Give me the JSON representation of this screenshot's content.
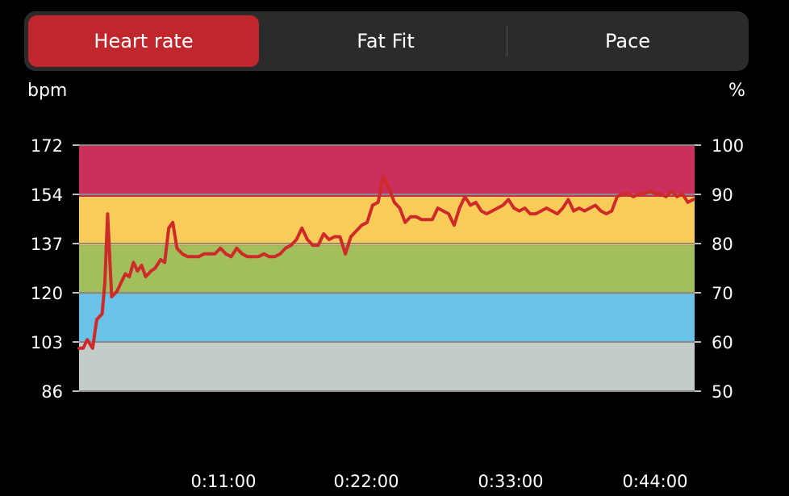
{
  "tabs": [
    {
      "label": "Heart rate",
      "active": true
    },
    {
      "label": "Fat Fit",
      "active": false
    },
    {
      "label": "Pace",
      "active": false
    }
  ],
  "chart_data": {
    "type": "line",
    "ylabel_left": "bpm",
    "ylabel_right": "%",
    "ylim": [
      86,
      172
    ],
    "y_ticks_left": [
      "172",
      "154",
      "137",
      "120",
      "103",
      "86"
    ],
    "y_ticks_right": [
      "100",
      "90",
      "80",
      "70",
      "60",
      "50"
    ],
    "x_tick_labels": [
      "0:11:00",
      "0:22:00",
      "0:33:00",
      "0:44:00"
    ],
    "zones": [
      {
        "from": 86,
        "to": 103,
        "color": "#c3ccc9"
      },
      {
        "from": 103,
        "to": 120,
        "color": "#69c2e8"
      },
      {
        "from": 120,
        "to": 137,
        "color": "#a3bf5c"
      },
      {
        "from": 137,
        "to": 154,
        "color": "#f9cc5a"
      },
      {
        "from": 154,
        "to": 172,
        "color": "#cc2f5c"
      }
    ],
    "grid_color": "#8a8a8a",
    "line_color": "#cf2a2a",
    "series": [
      {
        "x_minutes": [
          0,
          0.3,
          0.6,
          1.0,
          1.3,
          1.7,
          1.9,
          2.1,
          2.4,
          2.8,
          3.1,
          3.4,
          3.7,
          4.0,
          4.3,
          4.6,
          4.9,
          5.3,
          5.6,
          6.0,
          6.3,
          6.6,
          6.9,
          7.2,
          7.6,
          8.0,
          8.4,
          8.8,
          9.2,
          9.6,
          10.0,
          10.4,
          10.8,
          11.2,
          11.6,
          12.0,
          12.4,
          12.8,
          13.2,
          13.6,
          14.0,
          14.4,
          14.8,
          15.2,
          15.6,
          16.0,
          16.4,
          16.8,
          17.2,
          17.6,
          18.0,
          18.4,
          18.8,
          19.2,
          19.6,
          20.0,
          20.4,
          20.8,
          21.2,
          21.6,
          22.0,
          22.4,
          22.8,
          23.2,
          23.6,
          24.0,
          24.4,
          24.8,
          25.2,
          25.6,
          26.0,
          26.4,
          26.8,
          27.2,
          27.6,
          28.0,
          28.4,
          28.8,
          29.2,
          29.6,
          30.0,
          30.4,
          30.8,
          31.2,
          31.6,
          32.0,
          32.4,
          32.8,
          33.2,
          33.6,
          34.0,
          34.4,
          34.8,
          35.2,
          35.6,
          36.0,
          36.4,
          36.8,
          37.2,
          37.6,
          38.0,
          38.4,
          38.8,
          39.2,
          39.6,
          40.0,
          40.4,
          40.8,
          41.2,
          41.6,
          42.0,
          42.4,
          42.8,
          43.2,
          43.6,
          44.0,
          44.4,
          44.8,
          45.2
        ],
        "values": [
          101,
          101,
          104,
          101,
          111,
          113,
          124,
          148,
          119,
          121,
          124,
          127,
          126,
          131,
          128,
          130,
          126,
          128,
          129,
          132,
          131,
          143,
          145,
          136,
          134,
          133,
          133,
          133,
          134,
          134,
          134,
          136,
          134,
          133,
          136,
          134,
          133,
          133,
          133,
          134,
          133,
          133,
          134,
          136,
          137,
          139,
          143,
          139,
          137,
          137,
          141,
          139,
          140,
          140,
          134,
          140,
          142,
          144,
          145,
          151,
          152,
          161,
          157,
          152,
          150,
          145,
          147,
          147,
          146,
          146,
          146,
          150,
          149,
          148,
          144,
          150,
          154,
          151,
          152,
          149,
          148,
          149,
          150,
          151,
          153,
          150,
          149,
          150,
          148,
          148,
          149,
          150,
          149,
          148,
          150,
          153,
          149,
          150,
          149,
          150,
          151,
          149,
          148,
          149,
          154,
          155,
          155,
          154,
          155,
          155,
          156,
          155,
          155,
          154,
          156,
          154,
          155,
          152,
          153
        ]
      }
    ]
  }
}
